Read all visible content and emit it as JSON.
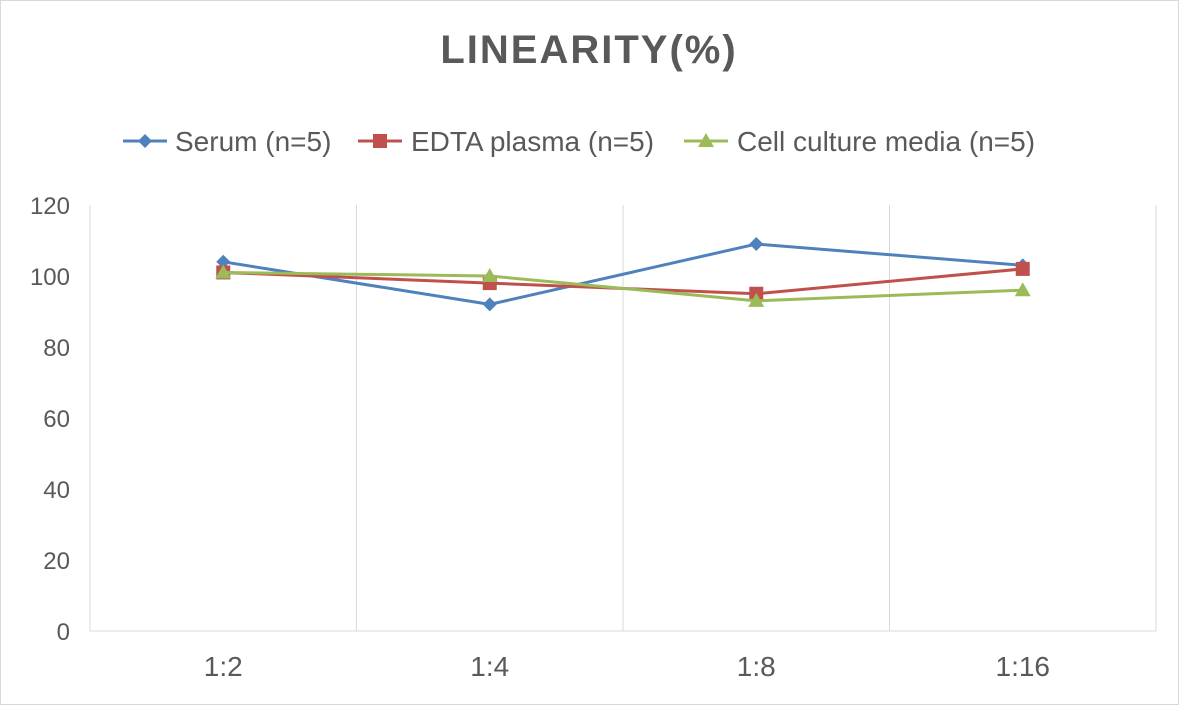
{
  "chart_data": {
    "type": "line",
    "title": "LINEARITY(%)",
    "xlabel": "",
    "ylabel": "",
    "categories": [
      "1:2",
      "1:4",
      "1:8",
      "1:16"
    ],
    "ylim": [
      0,
      120
    ],
    "yticks": [
      0,
      20,
      40,
      60,
      80,
      100,
      120
    ],
    "grid": "vertical",
    "legend_position": "top",
    "series": [
      {
        "name": "Serum (n=5)",
        "values": [
          104,
          92,
          109,
          103
        ],
        "color": "#4f81bd",
        "marker": "diamond"
      },
      {
        "name": "EDTA plasma (n=5)",
        "values": [
          101,
          98,
          95,
          102
        ],
        "color": "#c0504d",
        "marker": "square"
      },
      {
        "name": "Cell culture media (n=5)",
        "values": [
          101,
          100,
          93,
          96
        ],
        "color": "#9bbb59",
        "marker": "triangle"
      }
    ]
  }
}
